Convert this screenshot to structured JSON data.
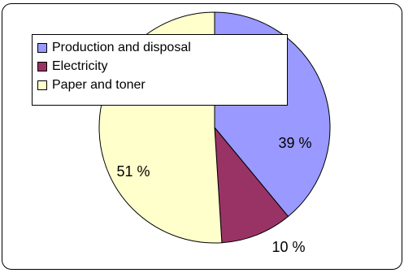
{
  "chart_data": {
    "type": "pie",
    "title": "",
    "series": [
      {
        "name": "Production and disposal",
        "value": 39,
        "label": "39 %",
        "color": "#9999ff"
      },
      {
        "name": "Electricity",
        "value": 10,
        "label": "10 %",
        "color": "#993366"
      },
      {
        "name": "Paper and toner",
        "value": 51,
        "label": "51 %",
        "color": "#ffffcc"
      }
    ],
    "start_angle_deg": 0,
    "direction": "clockwise",
    "legend_position": "top-left"
  }
}
